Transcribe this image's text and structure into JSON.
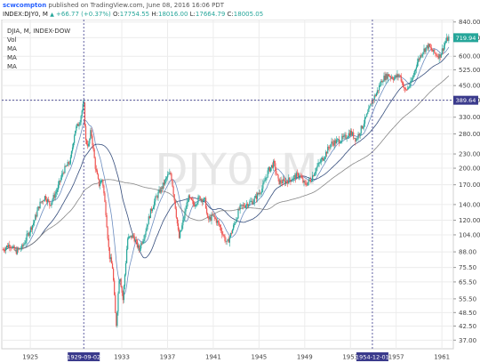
{
  "header": {
    "author": "scwcompton",
    "published_text": "published on TradingView.com, June 08, 2016 16:06 PDT"
  },
  "quote": {
    "symbol": "INDEX:DJY0, M",
    "change": "+66.77 (+0.37%)",
    "open_label": "O:",
    "open": "17754.55",
    "high_label": "H:",
    "high": "18016.00",
    "low_label": "L:",
    "low": "17664.79",
    "close_label": "C:",
    "close": "18005.05",
    "up_icon": "triangle-up-icon"
  },
  "legend": {
    "series_title": "DJIA, M, INDEX-DOW",
    "indicators": [
      "Vol",
      "MA",
      "MA",
      "MA"
    ]
  },
  "watermark": "DJY0, M",
  "colors": {
    "up": "#26a69a",
    "down": "#ef5350",
    "ma": [
      "#5b7fb8",
      "#1f3a6e",
      "#7a7a7a"
    ],
    "crosshair": "#3a3a8c",
    "highlight": "#3a3a8c"
  },
  "chart_data": {
    "type": "candlestick",
    "title": "DJIA, M, INDEX-DOW",
    "y_scale": "log",
    "ylim": [
      34,
      860
    ],
    "xlim": [
      1922.5,
      1962
    ],
    "y_ticks": [
      840,
      720,
      600,
      525,
      450,
      390,
      330,
      280,
      230,
      200,
      170,
      140,
      120,
      104,
      88,
      75.5,
      65.5,
      55.5,
      48.5,
      42.5,
      37.0
    ],
    "y_tick_labels": [
      "840.00",
      "720.00",
      "600.00",
      "525.00",
      "450.00",
      "390.00",
      "330.00",
      "280.00",
      "230.00",
      "200.00",
      "170.00",
      "140.00",
      "120.00",
      "104.00",
      "88.00",
      "75.50",
      "65.50",
      "55.50",
      "48.50",
      "42.50",
      "37.00"
    ],
    "x_ticks": [
      1925,
      1929.67,
      1933,
      1937,
      1941,
      1945,
      1949,
      1953,
      1954.92,
      1957,
      1961
    ],
    "x_tick_labels": [
      "1925",
      "1929-09-02",
      "1933",
      "1937",
      "1941",
      "1945",
      "1949",
      "1953",
      "1954-12-01",
      "1957",
      "1961"
    ],
    "highlighted_x_labels": [
      "1929-09-02",
      "1954-12-01"
    ],
    "last_price": 719.94,
    "last_price_label": "719.94",
    "crosshair_price": 389.64,
    "crosshair_price_label": "389.64",
    "crosshair_dates": [
      1929.67,
      1954.92
    ],
    "price_path": [
      [
        1922.6,
        90
      ],
      [
        1923.2,
        95
      ],
      [
        1923.7,
        88
      ],
      [
        1924.3,
        92
      ],
      [
        1924.8,
        105
      ],
      [
        1925.3,
        118
      ],
      [
        1925.8,
        140
      ],
      [
        1926.3,
        152
      ],
      [
        1926.7,
        140
      ],
      [
        1927.3,
        160
      ],
      [
        1927.9,
        195
      ],
      [
        1928.5,
        215
      ],
      [
        1928.9,
        290
      ],
      [
        1929.3,
        315
      ],
      [
        1929.67,
        381
      ],
      [
        1929.85,
        260
      ],
      [
        1930.1,
        250
      ],
      [
        1930.3,
        290
      ],
      [
        1930.7,
        200
      ],
      [
        1931.0,
        170
      ],
      [
        1931.3,
        180
      ],
      [
        1931.6,
        130
      ],
      [
        1931.9,
        85
      ],
      [
        1932.2,
        75
      ],
      [
        1932.5,
        42
      ],
      [
        1932.8,
        72
      ],
      [
        1933.1,
        55
      ],
      [
        1933.5,
        100
      ],
      [
        1934.0,
        103
      ],
      [
        1934.5,
        90
      ],
      [
        1935.0,
        105
      ],
      [
        1935.5,
        130
      ],
      [
        1936.0,
        150
      ],
      [
        1936.5,
        165
      ],
      [
        1937.0,
        185
      ],
      [
        1937.3,
        190
      ],
      [
        1937.7,
        135
      ],
      [
        1938.0,
        100
      ],
      [
        1938.3,
        115
      ],
      [
        1938.8,
        150
      ],
      [
        1939.3,
        140
      ],
      [
        1939.8,
        150
      ],
      [
        1940.3,
        145
      ],
      [
        1940.5,
        120
      ],
      [
        1941.0,
        125
      ],
      [
        1941.5,
        115
      ],
      [
        1942.2,
        95
      ],
      [
        1942.7,
        110
      ],
      [
        1943.3,
        135
      ],
      [
        1943.8,
        140
      ],
      [
        1944.5,
        145
      ],
      [
        1945.3,
        165
      ],
      [
        1945.8,
        195
      ],
      [
        1946.3,
        210
      ],
      [
        1946.7,
        175
      ],
      [
        1947.3,
        175
      ],
      [
        1947.8,
        180
      ],
      [
        1948.5,
        188
      ],
      [
        1949.0,
        170
      ],
      [
        1949.5,
        178
      ],
      [
        1950.0,
        200
      ],
      [
        1950.7,
        225
      ],
      [
        1951.3,
        255
      ],
      [
        1951.8,
        260
      ],
      [
        1952.5,
        270
      ],
      [
        1953.0,
        285
      ],
      [
        1953.5,
        265
      ],
      [
        1954.0,
        300
      ],
      [
        1954.5,
        340
      ],
      [
        1954.92,
        389
      ],
      [
        1955.3,
        420
      ],
      [
        1955.8,
        480
      ],
      [
        1956.3,
        500
      ],
      [
        1956.8,
        485
      ],
      [
        1957.3,
        500
      ],
      [
        1957.8,
        425
      ],
      [
        1958.3,
        460
      ],
      [
        1958.8,
        560
      ],
      [
        1959.3,
        630
      ],
      [
        1959.8,
        665
      ],
      [
        1960.3,
        620
      ],
      [
        1960.8,
        600
      ],
      [
        1961.3,
        690
      ],
      [
        1961.6,
        720
      ]
    ]
  }
}
